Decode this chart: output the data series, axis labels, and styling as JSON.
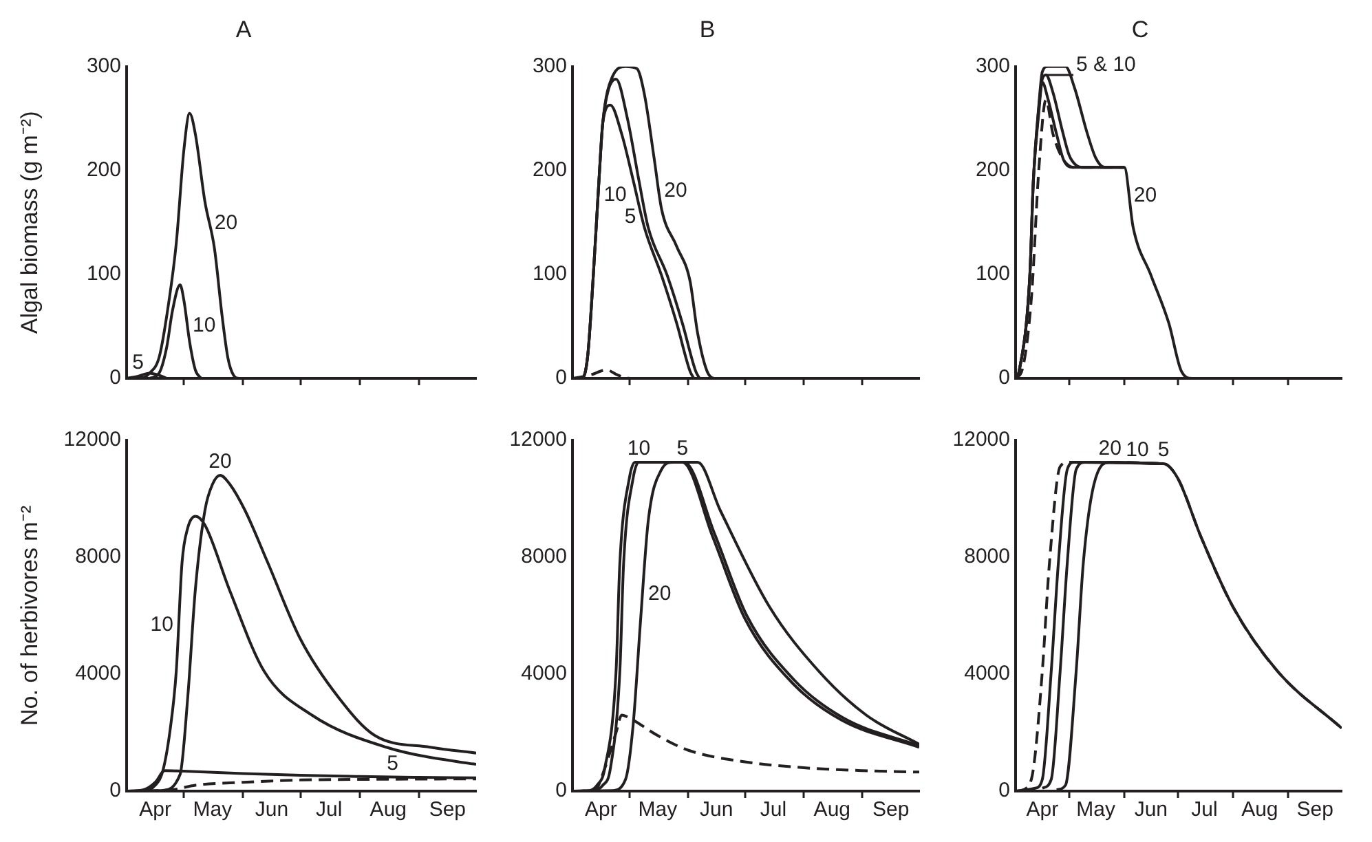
{
  "chart_data": [
    {
      "type": "line",
      "title": "A",
      "ylabel": "Algal biomass (g m⁻²)",
      "xlim": [
        "--04-01",
        "--10-01"
      ],
      "xticks": [
        {
          "value": "--04-16",
          "label": "Apr"
        },
        {
          "value": "--05-01",
          "label": null
        },
        {
          "value": "--05-16",
          "label": "May"
        },
        {
          "value": "--06-01",
          "label": null
        },
        {
          "value": "--06-16",
          "label": "Jun"
        },
        {
          "value": "--07-01",
          "label": null
        },
        {
          "value": "--07-16",
          "label": "Jul"
        },
        {
          "value": "--08-01",
          "label": null
        },
        {
          "value": "--08-16",
          "label": "Aug"
        },
        {
          "value": "--09-01",
          "label": null
        },
        {
          "value": "--09-16",
          "label": "Sep"
        }
      ],
      "ylim": [
        0,
        300
      ],
      "yticks": [
        0,
        100,
        200,
        300
      ],
      "tick_labels": "y",
      "series": [
        {
          "name": "5",
          "color": "#231f20",
          "line_style": "solid",
          "x": [
            "--04-01",
            "--04-07",
            "--04-13",
            "--04-18",
            "--04-22"
          ],
          "values": [
            0,
            2,
            5,
            3,
            0
          ]
        },
        {
          "name": "10",
          "color": "#231f20",
          "line_style": "solid",
          "x": [
            "--04-13",
            "--04-18",
            "--04-22",
            "--04-25",
            "--04-29",
            "--05-01",
            "--05-04",
            "--05-07",
            "--05-10"
          ],
          "values": [
            0,
            5,
            30,
            65,
            90,
            75,
            35,
            8,
            0
          ]
        },
        {
          "name": "20",
          "color": "#231f20",
          "line_style": "solid",
          "x": [
            "--04-01",
            "--04-10",
            "--04-13",
            "--04-18",
            "--04-22",
            "--04-27",
            "--05-01",
            "--05-04",
            "--05-07",
            "--05-12",
            "--05-17",
            "--05-21",
            "--05-24",
            "--05-27",
            "--05-30",
            "--10-01"
          ],
          "values": [
            0,
            1,
            5,
            20,
            60,
            130,
            220,
            255,
            235,
            170,
            125,
            60,
            20,
            3,
            0,
            0
          ]
        }
      ]
    },
    {
      "type": "line",
      "title": "B",
      "xlim": [
        "--04-01",
        "--10-01"
      ],
      "xticks": [
        {
          "value": "--04-16",
          "label": "Apr"
        },
        {
          "value": "--05-01",
          "label": null
        },
        {
          "value": "--05-16",
          "label": "May"
        },
        {
          "value": "--06-01",
          "label": null
        },
        {
          "value": "--06-16",
          "label": "Jun"
        },
        {
          "value": "--07-01",
          "label": null
        },
        {
          "value": "--07-16",
          "label": "Jul"
        },
        {
          "value": "--08-01",
          "label": null
        },
        {
          "value": "--08-16",
          "label": "Aug"
        },
        {
          "value": "--09-01",
          "label": null
        },
        {
          "value": "--09-16",
          "label": "Sep"
        }
      ],
      "ylim": [
        0,
        300
      ],
      "yticks": [
        0,
        100,
        200,
        300
      ],
      "tick_labels": "y",
      "series": [
        {
          "color": "#231f20",
          "line_style": "dashed",
          "x": [
            "--04-01",
            "--04-10",
            "--04-19",
            "--04-25",
            "--05-01"
          ],
          "values": [
            0,
            3,
            8,
            3,
            0
          ]
        },
        {
          "name": "5",
          "color": "#231f20",
          "line_style": "solid",
          "x": [
            "--04-01",
            "--04-06",
            "--04-09",
            "--04-12",
            "--04-15",
            "--04-17",
            "--04-21",
            "--04-27",
            "--05-03",
            "--05-09",
            "--05-18",
            "--05-26",
            "--06-02",
            "--06-04"
          ],
          "values": [
            0,
            0,
            21,
            99,
            191,
            246,
            263,
            235,
            191,
            145,
            99,
            53,
            7,
            0
          ]
        },
        {
          "name": "10",
          "color": "#231f20",
          "line_style": "solid",
          "x": [
            "--04-01",
            "--04-06",
            "--04-09",
            "--04-12",
            "--04-15",
            "--04-17",
            "--04-20",
            "--04-24",
            "--04-30",
            "--05-06",
            "--05-11",
            "--05-21",
            "--05-29",
            "--06-05",
            "--06-07"
          ],
          "values": [
            0,
            0,
            21,
            99,
            191,
            246,
            278,
            288,
            250,
            191,
            145,
            99,
            53,
            7,
            0
          ]
        },
        {
          "name": "20",
          "color": "#231f20",
          "line_style": "solid",
          "x": [
            "--04-01",
            "--04-06",
            "--04-09",
            "--04-12",
            "--04-15",
            "--04-17",
            "--04-22",
            "--04-29",
            "--05-05",
            "--05-09",
            "--05-14",
            "--05-18",
            "--05-26",
            "--06-02",
            "--06-06",
            "--06-11",
            "--06-15",
            "--10-01"
          ],
          "values": [
            0,
            0,
            21,
            99,
            191,
            246,
            290,
            300,
            298,
            273,
            213,
            163,
            127,
            94,
            44,
            7,
            0,
            0
          ]
        }
      ]
    },
    {
      "type": "line",
      "title": "C",
      "xlim": [
        "--04-01",
        "--10-01"
      ],
      "xticks": [
        {
          "value": "--04-16",
          "label": "Apr"
        },
        {
          "value": "--05-01",
          "label": null
        },
        {
          "value": "--05-16",
          "label": "May"
        },
        {
          "value": "--06-01",
          "label": null
        },
        {
          "value": "--06-16",
          "label": "Jun"
        },
        {
          "value": "--07-01",
          "label": null
        },
        {
          "value": "--07-16",
          "label": "Jul"
        },
        {
          "value": "--08-01",
          "label": null
        },
        {
          "value": "--08-16",
          "label": "Aug"
        },
        {
          "value": "--09-01",
          "label": null
        },
        {
          "value": "--09-16",
          "label": "Sep"
        }
      ],
      "ylim": [
        0,
        300
      ],
      "yticks": [
        0,
        100,
        200,
        300
      ],
      "tick_labels": "y",
      "series": [
        {
          "color": "#231f20",
          "line_style": "dashed",
          "x": [
            "--04-01",
            "--04-05",
            "--04-10",
            "--04-14",
            "--04-18",
            "--04-22",
            "--04-28",
            "--05-04",
            "--06-01"
          ],
          "values": [
            0,
            10,
            80,
            200,
            268,
            235,
            210,
            203,
            203
          ]
        },
        {
          "color": "#231f20",
          "line_style": "solid",
          "x": [
            "--04-01",
            "--04-03",
            "--04-09",
            "--04-11",
            "--04-14",
            "--04-16",
            "--04-19",
            "--04-24",
            "--04-28",
            "--05-03",
            "--06-01"
          ],
          "values": [
            0,
            7,
            99,
            191,
            255,
            285,
            270,
            235,
            210,
            203,
            203
          ]
        },
        {
          "name": "5 & 10",
          "color": "#231f20",
          "line_style": "solid",
          "x": [
            "--04-01",
            "--04-03",
            "--04-09",
            "--04-11",
            "--04-14",
            "--04-16",
            "--04-18",
            "--04-22",
            "--04-27",
            "--05-01",
            "--05-05",
            "--05-09",
            "--06-01"
          ],
          "values": [
            0,
            7,
            99,
            191,
            260,
            288,
            292,
            275,
            240,
            215,
            205,
            203,
            203
          ]
        },
        {
          "name": "20",
          "color": "#231f20",
          "line_style": "solid",
          "x": [
            "--04-01",
            "--04-03",
            "--04-09",
            "--04-11",
            "--04-14",
            "--04-16",
            "--04-19",
            "--04-29",
            "--05-04",
            "--05-11",
            "--05-16",
            "--05-21",
            "--06-01",
            "--06-06",
            "--06-16",
            "--06-26",
            "--07-03",
            "--07-09",
            "--10-01"
          ],
          "values": [
            0,
            7,
            99,
            191,
            262,
            295,
            300,
            300,
            280,
            237,
            212,
            203,
            203,
            145,
            99,
            53,
            7,
            0,
            0
          ]
        }
      ]
    },
    {
      "type": "line",
      "ylabel": "No. of herbivores m⁻²",
      "xlim": [
        "--04-01",
        "--10-01"
      ],
      "xticks": [
        {
          "value": "--04-16",
          "label": "Apr"
        },
        {
          "value": "--05-01",
          "label": null
        },
        {
          "value": "--05-16",
          "label": "May"
        },
        {
          "value": "--06-01",
          "label": null
        },
        {
          "value": "--06-16",
          "label": "Jun"
        },
        {
          "value": "--07-01",
          "label": null
        },
        {
          "value": "--07-16",
          "label": "Jul"
        },
        {
          "value": "--08-01",
          "label": null
        },
        {
          "value": "--08-16",
          "label": "Aug"
        },
        {
          "value": "--09-01",
          "label": null
        },
        {
          "value": "--09-16",
          "label": "Sep"
        }
      ],
      "ylim": [
        0,
        12000
      ],
      "yticks": [
        0,
        4000,
        8000,
        12000
      ],
      "series": [
        {
          "color": "#231f20",
          "line_style": "dashed",
          "x": [
            "--04-01",
            "--04-25",
            "--05-07",
            "--06-01",
            "--07-01",
            "--08-01",
            "--10-01"
          ],
          "values": [
            0,
            50,
            200,
            300,
            380,
            400,
            420
          ]
        },
        {
          "name": "5",
          "color": "#231f20",
          "line_style": "solid",
          "x": [
            "--04-01",
            "--04-10",
            "--04-16",
            "--04-21",
            "--05-01",
            "--06-01",
            "--07-01",
            "--08-01",
            "--09-01",
            "--10-01"
          ],
          "values": [
            0,
            50,
            300,
            700,
            680,
            600,
            540,
            500,
            470,
            450
          ]
        },
        {
          "name": "10",
          "color": "#231f20",
          "line_style": "solid",
          "x": [
            "--04-01",
            "--04-10",
            "--04-16",
            "--04-20",
            "--04-24",
            "--04-27",
            "--04-30",
            "--05-03",
            "--05-07",
            "--05-12",
            "--05-25",
            "--06-12",
            "--07-07",
            "--08-15",
            "--09-27",
            "--10-01"
          ],
          "values": [
            0,
            20,
            200,
            700,
            2200,
            4100,
            7800,
            9000,
            9400,
            9100,
            6860,
            4100,
            2600,
            1500,
            950,
            920
          ]
        },
        {
          "name": "20",
          "color": "#231f20",
          "line_style": "solid",
          "x": [
            "--04-01",
            "--04-19",
            "--04-29",
            "--05-03",
            "--05-07",
            "--05-12",
            "--05-16",
            "--05-20",
            "--05-25",
            "--06-02",
            "--06-14",
            "--07-01",
            "--07-21",
            "--08-09",
            "--09-07",
            "--10-01"
          ],
          "values": [
            0,
            20,
            570,
            3200,
            6900,
            9600,
            10500,
            10800,
            10500,
            9600,
            7800,
            5200,
            3200,
            1900,
            1500,
            1300
          ]
        }
      ]
    },
    {
      "type": "line",
      "xlim": [
        "--04-01",
        "--10-01"
      ],
      "xticks": [
        {
          "value": "--04-16",
          "label": "Apr"
        },
        {
          "value": "--05-01",
          "label": null
        },
        {
          "value": "--05-16",
          "label": "May"
        },
        {
          "value": "--06-01",
          "label": null
        },
        {
          "value": "--06-16",
          "label": "Jun"
        },
        {
          "value": "--07-01",
          "label": null
        },
        {
          "value": "--07-16",
          "label": "Jul"
        },
        {
          "value": "--08-01",
          "label": null
        },
        {
          "value": "--08-16",
          "label": "Aug"
        },
        {
          "value": "--09-01",
          "label": null
        },
        {
          "value": "--09-16",
          "label": "Sep"
        }
      ],
      "ylim": [
        0,
        12000
      ],
      "yticks": [
        0,
        4000,
        8000,
        12000
      ],
      "series": [
        {
          "color": "#231f20",
          "line_style": "dashed",
          "x": [
            "--04-01",
            "--04-13",
            "--04-18",
            "--04-24",
            "--04-27",
            "--05-01",
            "--05-16",
            "--06-01",
            "--07-01",
            "--08-01",
            "--09-01",
            "--10-01"
          ],
          "values": [
            0,
            50,
            770,
            2000,
            2600,
            2500,
            1900,
            1400,
            1000,
            800,
            700,
            650
          ]
        },
        {
          "name": "5",
          "color": "#231f20",
          "line_style": "solid",
          "x": [
            "--04-01",
            "--04-10",
            "--04-14",
            "--04-18",
            "--04-24",
            "--04-26",
            "--05-01",
            "--05-04",
            "--05-29",
            "--06-14",
            "--07-01",
            "--07-26",
            "--08-21",
            "--10-01"
          ],
          "values": [
            0,
            20,
            200,
            770,
            4100,
            7800,
            10700,
            11250,
            11250,
            8700,
            5900,
            3700,
            2430,
            1500
          ]
        },
        {
          "name": "10",
          "color": "#231f20",
          "line_style": "solid",
          "x": [
            "--04-01",
            "--04-12",
            "--04-17",
            "--04-21",
            "--04-26",
            "--04-28",
            "--05-03",
            "--05-06",
            "--05-30",
            "--06-15",
            "--07-02",
            "--07-27",
            "--08-22",
            "--10-01"
          ],
          "values": [
            0,
            20,
            200,
            770,
            4100,
            7800,
            10700,
            11250,
            11250,
            8800,
            6000,
            3800,
            2500,
            1550
          ]
        },
        {
          "name": "20",
          "color": "#231f20",
          "line_style": "solid",
          "x": [
            "--04-01",
            "--04-22",
            "--04-29",
            "--05-03",
            "--05-07",
            "--05-11",
            "--05-18",
            "--05-24",
            "--06-06",
            "--06-18",
            "--07-14",
            "--08-09",
            "--09-03",
            "--10-01"
          ],
          "values": [
            0,
            20,
            400,
            2250,
            5900,
            9250,
            11000,
            11250,
            11250,
            9600,
            6300,
            4100,
            2600,
            1600
          ]
        }
      ]
    },
    {
      "type": "line",
      "xlim": [
        "--04-01",
        "--10-01"
      ],
      "xticks": [
        {
          "value": "--04-16",
          "label": "Apr"
        },
        {
          "value": "--05-01",
          "label": null
        },
        {
          "value": "--05-16",
          "label": "May"
        },
        {
          "value": "--06-01",
          "label": null
        },
        {
          "value": "--06-16",
          "label": "Jun"
        },
        {
          "value": "--07-01",
          "label": null
        },
        {
          "value": "--07-16",
          "label": "Jul"
        },
        {
          "value": "--08-01",
          "label": null
        },
        {
          "value": "--08-16",
          "label": "Aug"
        },
        {
          "value": "--09-01",
          "label": null
        },
        {
          "value": "--09-16",
          "label": "Sep"
        }
      ],
      "ylim": [
        0,
        12000
      ],
      "yticks": [
        0,
        4000,
        8000,
        12000
      ],
      "series": [
        {
          "color": "#231f20",
          "line_style": "dashed",
          "x": [
            "--04-01",
            "--04-07",
            "--04-11",
            "--04-16",
            "--04-20",
            "--04-26",
            "--05-01",
            "--06-23",
            "--07-01",
            "--07-14",
            "--08-01",
            "--08-26",
            "--10-01"
          ],
          "values": [
            0,
            100,
            770,
            4100,
            7800,
            11100,
            11250,
            11200,
            10700,
            8700,
            6300,
            4100,
            2150
          ]
        },
        {
          "name": "5",
          "color": "#231f20",
          "line_style": "solid",
          "x": [
            "--04-01",
            "--04-12",
            "--04-16",
            "--04-21",
            "--04-25",
            "--04-30",
            "--05-04",
            "--06-23",
            "--07-01",
            "--07-14",
            "--08-01",
            "--08-26",
            "--10-01"
          ],
          "values": [
            0,
            100,
            400,
            4100,
            7800,
            11000,
            11250,
            11200,
            10700,
            8700,
            6300,
            4100,
            2150
          ]
        },
        {
          "name": "10",
          "color": "#231f20",
          "line_style": "solid",
          "x": [
            "--04-16",
            "--04-21",
            "--04-26",
            "--04-30",
            "--05-05",
            "--05-10",
            "--06-23"
          ],
          "values": [
            100,
            400,
            4100,
            7800,
            11000,
            11250,
            11200
          ]
        },
        {
          "name": "20",
          "color": "#231f20",
          "line_style": "solid",
          "x": [
            "--04-24",
            "--04-29",
            "--05-05",
            "--05-09",
            "--05-15",
            "--05-24",
            "--06-23"
          ],
          "values": [
            50,
            200,
            4100,
            7800,
            10500,
            11250,
            11200
          ]
        }
      ]
    }
  ]
}
